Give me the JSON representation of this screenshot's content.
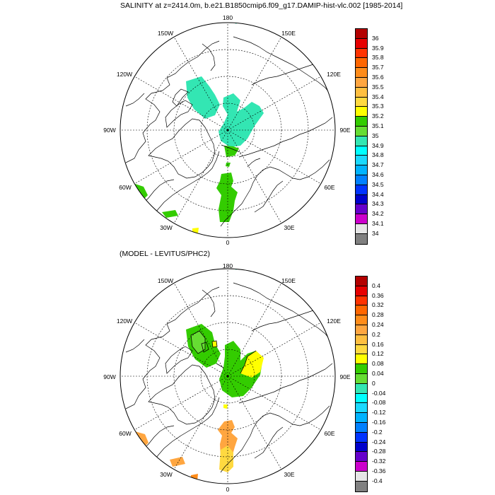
{
  "panels": [
    {
      "title": "SALINITY at z=2414.0m, b.e21.B1850cmip6.f09_g17.DAMIP-hist-vlc.002 [1985-2014]",
      "lon_labels": {
        "n": "180",
        "ne": "150E",
        "ene": "120E",
        "e": "90E",
        "se_e": "60E",
        "s_e": "30E",
        "s": "0",
        "s_w": "30W",
        "se_w": "60W",
        "w": "90W",
        "wnw": "120W",
        "nw": "150W"
      },
      "colorbar": {
        "labels": [
          "36",
          "35.9",
          "35.8",
          "35.7",
          "35.6",
          "35.5",
          "35.4",
          "35.3",
          "35.2",
          "35.1",
          "35",
          "34.9",
          "34.8",
          "34.7",
          "34.6",
          "34.5",
          "34.4",
          "34.3",
          "34.2",
          "34.1",
          "34"
        ],
        "colors": [
          "#b30000",
          "#e60000",
          "#ff3300",
          "#ff6600",
          "#ff8c1a",
          "#ffa640",
          "#ffbf40",
          "#ffd940",
          "#ffff00",
          "#33cc00",
          "#66dd33",
          "#33e6b3",
          "#00ffff",
          "#1ad9ff",
          "#00b3ff",
          "#0080ff",
          "#0033ff",
          "#0000cc",
          "#6600cc",
          "#cc00cc",
          "#e6e6e6",
          "#808080"
        ]
      }
    },
    {
      "title": "(MODEL - LEVITUS/PHC2)",
      "lon_labels": {
        "n": "180",
        "ne": "150E",
        "ene": "120E",
        "e": "90E",
        "se_e": "60E",
        "s_e": "30E",
        "s": "0",
        "s_w": "30W",
        "se_w": "60W",
        "w": "90W",
        "wnw": "120W",
        "nw": "150W"
      },
      "colorbar": {
        "labels": [
          "0.4",
          "0.36",
          "0.32",
          "0.28",
          "0.24",
          "0.2",
          "0.16",
          "0.12",
          "0.08",
          "0.04",
          "0",
          "-0.04",
          "-0.08",
          "-0.12",
          "-0.16",
          "-0.2",
          "-0.24",
          "-0.28",
          "-0.32",
          "-0.36",
          "-0.4"
        ],
        "colors": [
          "#b30000",
          "#e60000",
          "#ff3300",
          "#ff6600",
          "#ff8c1a",
          "#ffa640",
          "#ffbf40",
          "#ffd940",
          "#ffff00",
          "#33cc00",
          "#66dd33",
          "#33e6b3",
          "#00ffff",
          "#1ad9ff",
          "#00b3ff",
          "#0080ff",
          "#0033ff",
          "#0000cc",
          "#6600cc",
          "#cc00cc",
          "#e6e6e6",
          "#808080"
        ]
      }
    }
  ],
  "colors": {
    "salinity_cyan": "#33e6b3",
    "salinity_green": "#33cc00",
    "diff_green": "#33cc00",
    "diff_yellow": "#ffff00",
    "diff_orange": "#ffa640",
    "diff_dark_orange": "#ff8c1a"
  }
}
